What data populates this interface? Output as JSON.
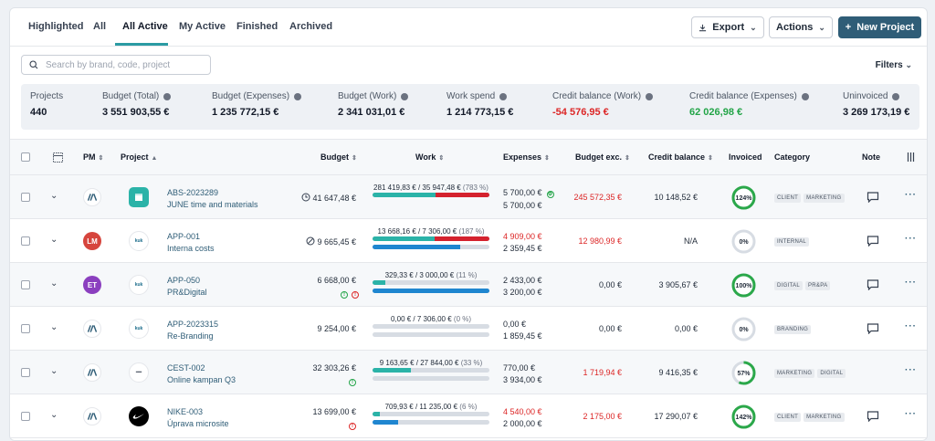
{
  "tabs": [
    {
      "label": "Highlighted"
    },
    {
      "label": "All"
    },
    {
      "label": "All Active"
    },
    {
      "label": "My Active"
    },
    {
      "label": "Finished"
    },
    {
      "label": "Archived"
    }
  ],
  "toolbar": {
    "export_label": "Export",
    "actions_label": "Actions",
    "new_project_label": "New Project"
  },
  "search": {
    "placeholder": "Search by brand, code, project"
  },
  "filters_label": "Filters",
  "stats": [
    {
      "label": "Projects",
      "value": "440"
    },
    {
      "label": "Budget (Total)",
      "value": "3 551 903,55 €"
    },
    {
      "label": "Budget (Expenses)",
      "value": "1 235 772,15 €"
    },
    {
      "label": "Budget (Work)",
      "value": "2 341 031,01 €"
    },
    {
      "label": "Work spend",
      "value": "1 214 773,15 €"
    },
    {
      "label": "Credit balance (Work)",
      "value": "-54 576,95 €"
    },
    {
      "label": "Credit balance (Expenses)",
      "value": "62 026,98 €"
    },
    {
      "label": "Uninvoiced",
      "value": "3 269 173,19 €"
    }
  ],
  "columns": {
    "pm": "PM",
    "project": "Project",
    "budget": "Budget",
    "work": "Work",
    "expenses": "Expenses",
    "budget_exc": "Budget exc.",
    "credit_balance": "Credit balance",
    "invoiced": "Invoiced",
    "category": "Category",
    "note": "Note"
  },
  "rows": [
    {
      "code": "ABS-2023289",
      "name": "JUNE time and materials",
      "pm": "",
      "pm_color": "#ffffff",
      "logo": "square",
      "budget": "41 647,48 €",
      "work_label": "281 419,83 € / 35 947,48 €",
      "work_pct_label": "(783 %)",
      "work_fill": 0.54,
      "work_over": 0.46,
      "work_blue": null,
      "exp1": "5 700,00 €",
      "exp2": "5 700,00 €",
      "exp1_red": false,
      "budget_exc": "245 572,35 €",
      "budget_exc_red": true,
      "credit": "10 148,52 €",
      "invoiced": "124%",
      "invoiced_frac": 1.0,
      "tags": [
        "CLIENT",
        "MARKETING"
      ],
      "has_note": true
    },
    {
      "code": "APP-001",
      "name": "Interna costs",
      "pm": "LM",
      "pm_color": "#d6453d",
      "logo": "kuk",
      "budget": "9 665,45 €",
      "work_label": "13 668,16 € / 7 306,00 €",
      "work_pct_label": "(187 %)",
      "work_fill": 0.53,
      "work_over": 0.47,
      "work_blue": 0.75,
      "exp1": "4 909,00 €",
      "exp2": "2 359,45 €",
      "exp1_red": true,
      "budget_exc": "12 980,99 €",
      "budget_exc_red": true,
      "credit": "N/A",
      "invoiced": "0%",
      "invoiced_frac": 0,
      "tags": [
        "INTERNAL"
      ],
      "has_note": true
    },
    {
      "code": "APP-050",
      "name": "PR&Digital",
      "pm": "ET",
      "pm_color": "#8b3fbf",
      "logo": "kuk",
      "budget": "6 668,00 €",
      "work_label": "329,33 € / 3 000,00 €",
      "work_pct_label": "(11 %)",
      "work_fill": 0.11,
      "work_over": 0,
      "work_blue": 1.0,
      "exp1": "2 433,00 €",
      "exp2": "3 200,00 €",
      "exp1_red": false,
      "budget_exc": "0,00 €",
      "budget_exc_red": false,
      "credit": "3 905,67 €",
      "invoiced": "100%",
      "invoiced_frac": 1.0,
      "tags": [
        "DIGITAL",
        "PR&PA"
      ],
      "has_note": true
    },
    {
      "code": "APP-2023315",
      "name": "Re-Branding",
      "pm": "",
      "pm_color": "#ffffff",
      "logo": "kuk",
      "budget": "9 254,00 €",
      "work_label": "0,00 € / 7 306,00 €",
      "work_pct_label": "(0 %)",
      "work_fill": 0,
      "work_over": 0,
      "work_blue": 0,
      "exp1": "0,00 €",
      "exp2": "1 859,45 €",
      "exp1_red": false,
      "budget_exc": "0,00 €",
      "budget_exc_red": false,
      "credit": "0,00 €",
      "invoiced": "0%",
      "invoiced_frac": 0,
      "tags": [
        "BRANDING"
      ],
      "has_note": true
    },
    {
      "code": "CEST-002",
      "name": "Online kampan Q3",
      "pm": "",
      "pm_color": "#ffffff",
      "logo": "cest",
      "budget": "32 303,26 €",
      "work_label": "9 163,65 € / 27 844,00 €",
      "work_pct_label": "(33 %)",
      "work_fill": 0.33,
      "work_over": 0,
      "work_blue": 0,
      "exp1": "770,00 €",
      "exp2": "3 934,00 €",
      "exp1_red": false,
      "budget_exc": "1 719,94 €",
      "budget_exc_red": true,
      "credit": "9 416,35 €",
      "invoiced": "57%",
      "invoiced_frac": 0.57,
      "tags": [
        "MARKETING",
        "DIGITAL"
      ],
      "has_note": false
    },
    {
      "code": "NIKE-003",
      "name": "Úprava microsite",
      "pm": "",
      "pm_color": "#ffffff",
      "logo": "nike",
      "budget": "13 699,00 €",
      "work_label": "709,93 € / 11 235,00 €",
      "work_pct_label": "(6 %)",
      "work_fill": 0.06,
      "work_over": 0,
      "work_blue": 0.22,
      "exp1": "4 540,00 €",
      "exp2": "2 000,00 €",
      "exp1_red": true,
      "budget_exc": "2 175,00 €",
      "budget_exc_red": true,
      "credit": "17 290,07 €",
      "invoiced": "142%",
      "invoiced_frac": 1.0,
      "tags": [
        "CLIENT",
        "MARKETING"
      ],
      "has_note": true
    }
  ],
  "colors": {
    "accent": "#2b9ba3",
    "primary": "#2f5d77",
    "red": "#dc2626",
    "green": "#22a447"
  }
}
